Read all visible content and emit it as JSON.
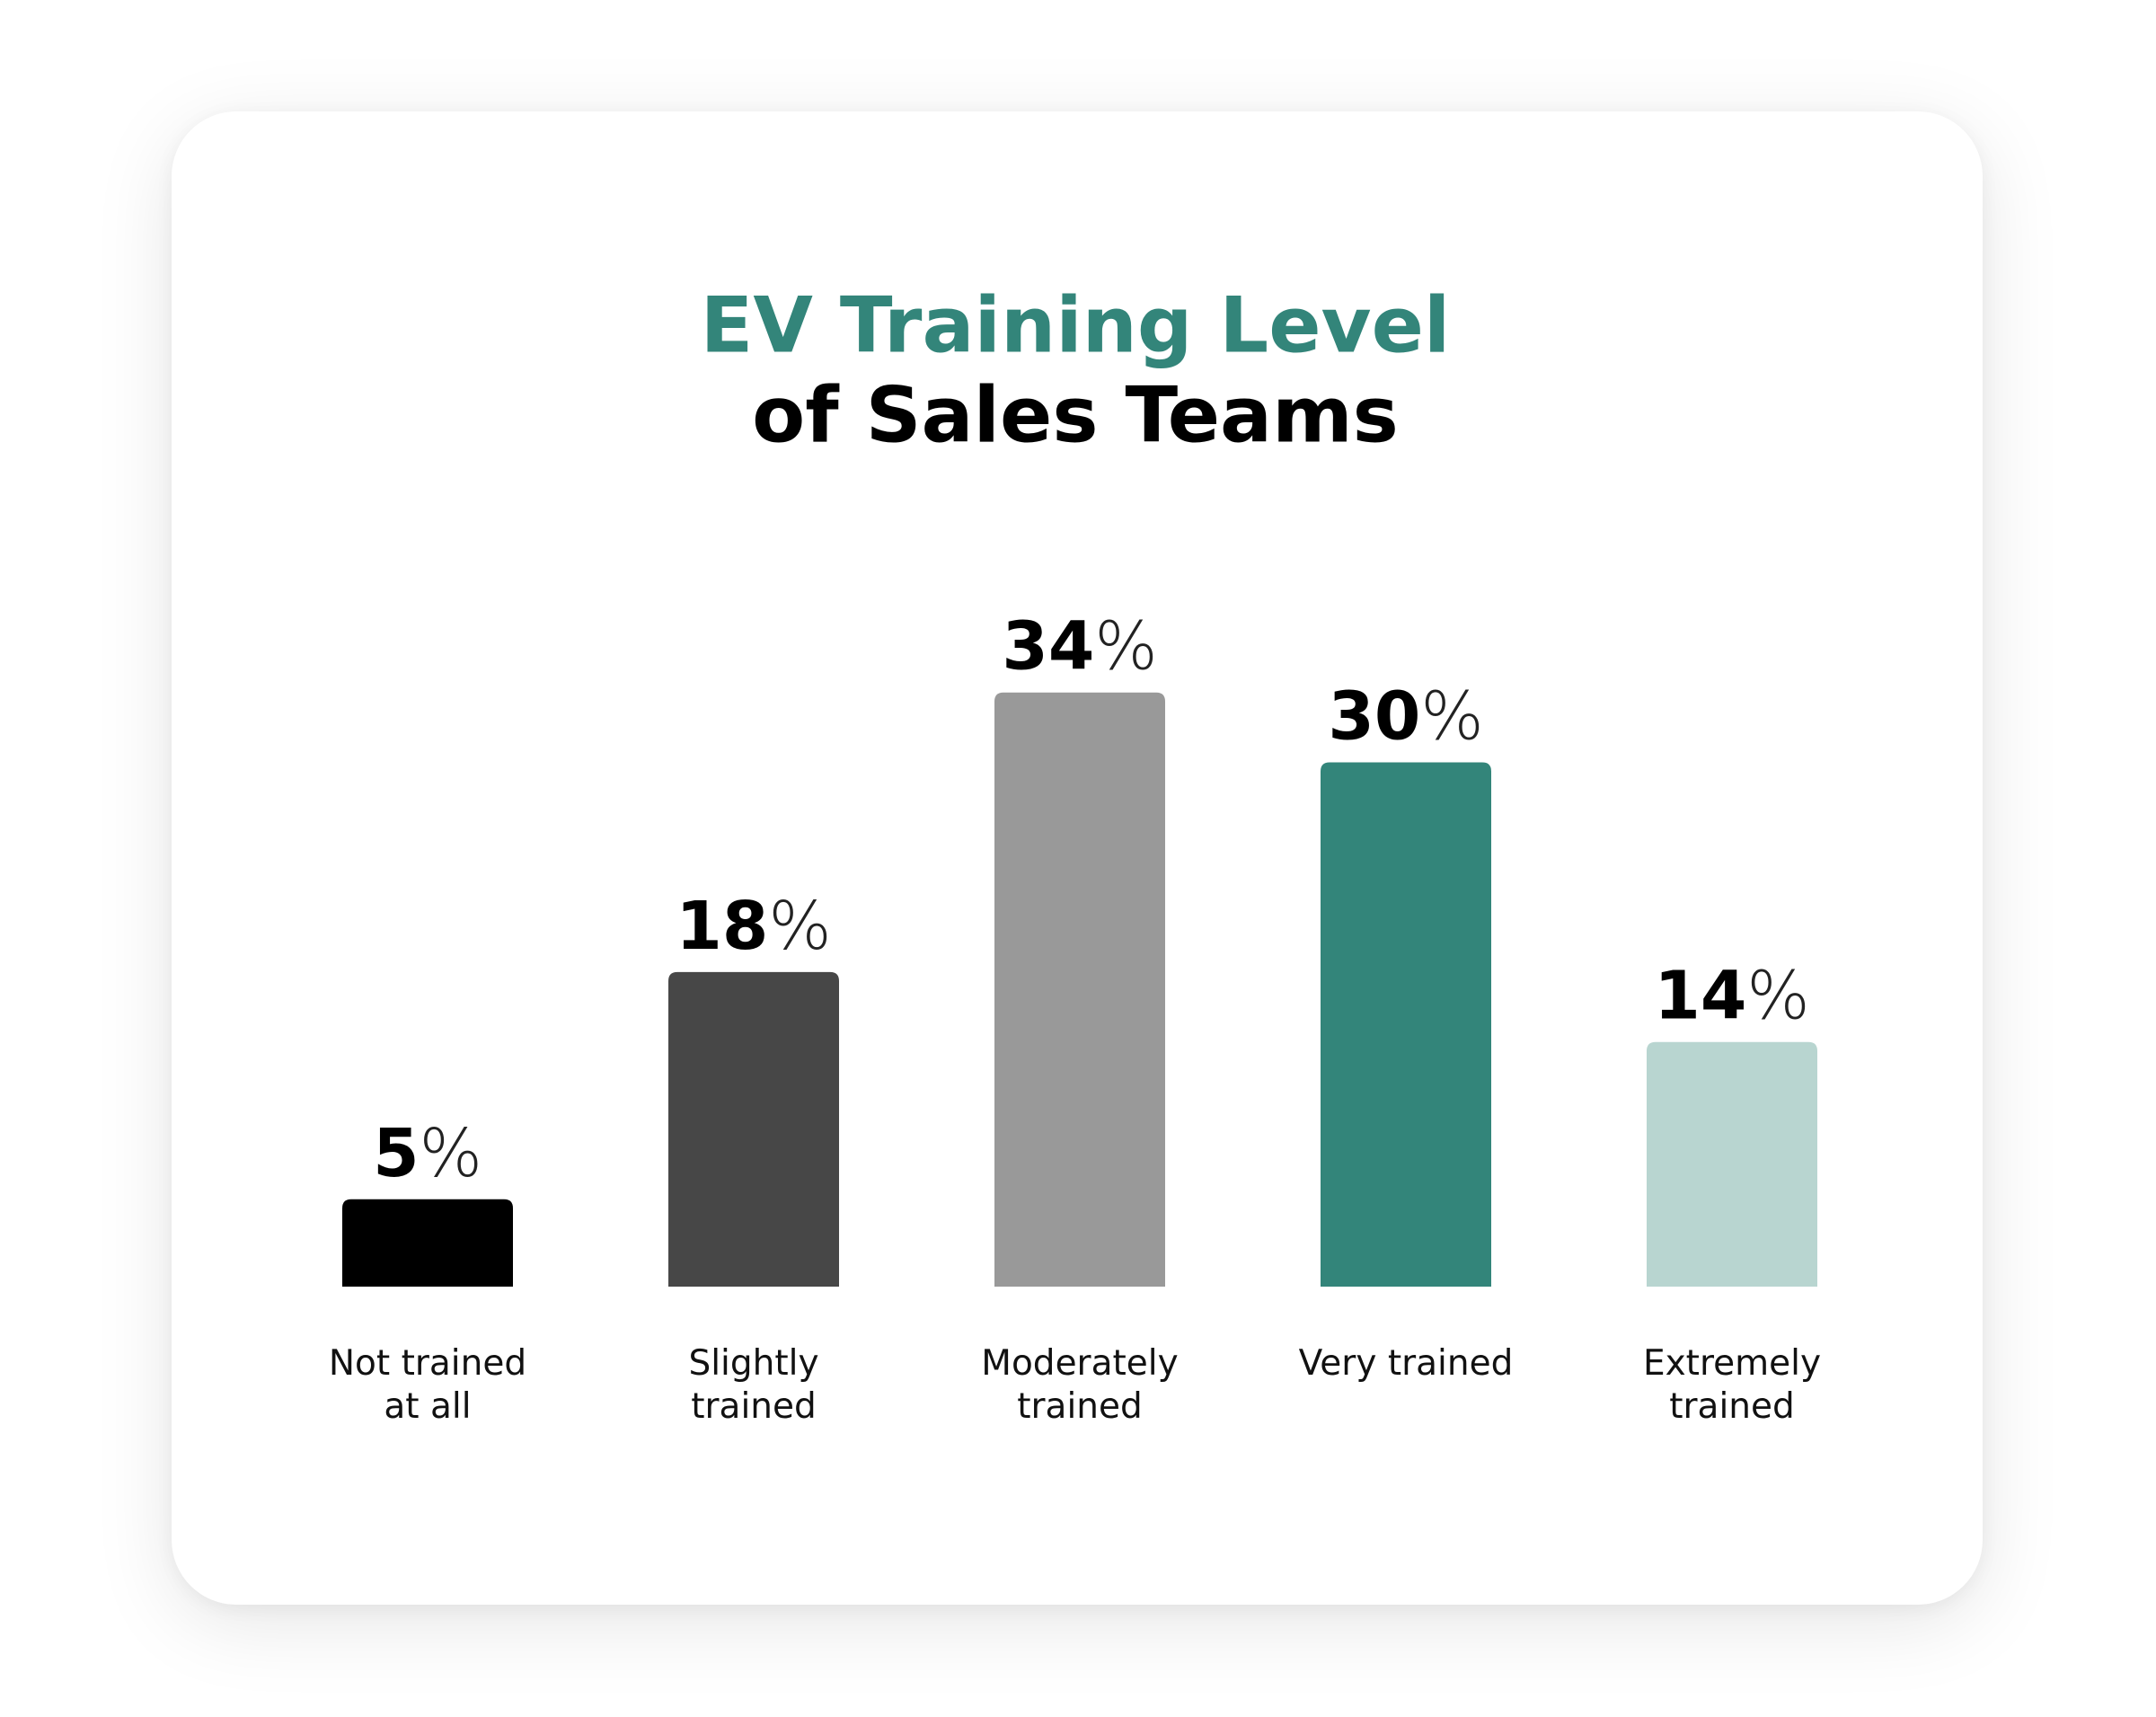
{
  "chart_data": {
    "type": "bar",
    "title": [
      "EV Training Level",
      "of Sales Teams"
    ],
    "title_colors": [
      "#33857a",
      "#000000"
    ],
    "categories": [
      "Not trained at all",
      "Slightly trained",
      "Moderately trained",
      "Very trained",
      "Extremely trained"
    ],
    "values": [
      5,
      18,
      34,
      30,
      14
    ],
    "value_labels": [
      "5%",
      "18%",
      "34%",
      "30%",
      "14%"
    ],
    "colors": [
      "#000000",
      "#474747",
      "#999999",
      "#33857a",
      "#b8d5d0"
    ]
  }
}
